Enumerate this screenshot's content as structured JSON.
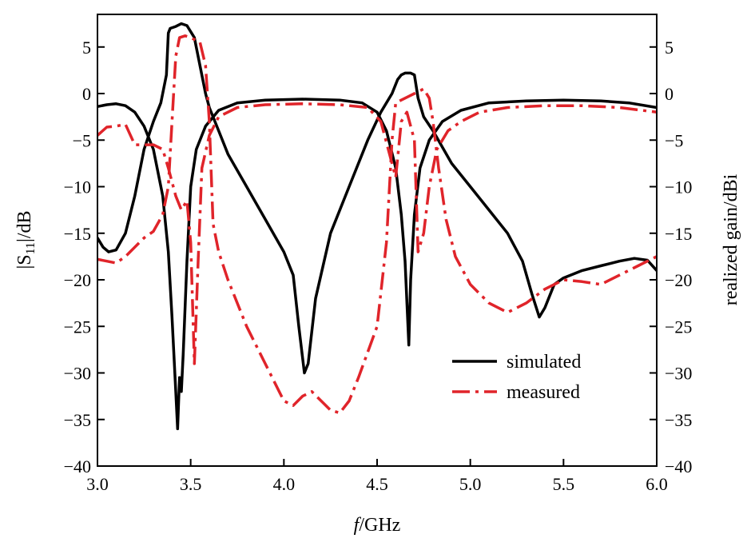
{
  "chart_data": {
    "type": "line",
    "xlabel_prefix": "f",
    "xlabel_suffix": "/GHz",
    "ylabel_left_prefix": "|S",
    "ylabel_left_sub": "11",
    "ylabel_left_suffix": "|/dB",
    "ylabel_right": "realized gain/dBi",
    "xlim": [
      3.0,
      6.0
    ],
    "ylim": [
      -40,
      8.5
    ],
    "x_ticks": [
      3.0,
      3.5,
      4.0,
      4.5,
      5.0,
      5.5,
      6.0
    ],
    "x_tick_labels": [
      "3.0",
      "3.5",
      "4.0",
      "4.5",
      "5.0",
      "5.5",
      "6.0"
    ],
    "y_ticks": [
      5,
      0,
      -5,
      -10,
      -15,
      -20,
      -25,
      -30,
      -35,
      -40
    ],
    "y_tick_labels": [
      "5",
      "0",
      "−5",
      "−10",
      "−15",
      "−20",
      "−25",
      "−30",
      "−35",
      "−40"
    ],
    "grid": false,
    "legend_position": "bottom-right",
    "legend": [
      {
        "label": "simulated",
        "color": "#000000",
        "style": "solid"
      },
      {
        "label": "measured",
        "color": "#e0242a",
        "style": "dashdot"
      }
    ],
    "series": [
      {
        "name": "simulated",
        "quantity": "S11",
        "color": "#000000",
        "style": "solid",
        "points": [
          [
            3.0,
            -15.5
          ],
          [
            3.03,
            -16.5
          ],
          [
            3.06,
            -17.0
          ],
          [
            3.1,
            -16.8
          ],
          [
            3.15,
            -15.0
          ],
          [
            3.2,
            -11.0
          ],
          [
            3.25,
            -6.0
          ],
          [
            3.3,
            -3.0
          ],
          [
            3.34,
            -1.0
          ],
          [
            3.37,
            2.0
          ],
          [
            3.38,
            6.5
          ],
          [
            3.39,
            7.0
          ],
          [
            3.42,
            7.2
          ],
          [
            3.45,
            7.5
          ],
          [
            3.48,
            7.3
          ],
          [
            3.52,
            6.0
          ],
          [
            3.55,
            3.0
          ],
          [
            3.58,
            0.0
          ],
          [
            3.6,
            -1.5
          ],
          [
            3.65,
            -4.0
          ],
          [
            3.7,
            -6.5
          ],
          [
            3.8,
            -10.0
          ],
          [
            3.9,
            -13.5
          ],
          [
            4.0,
            -17.0
          ],
          [
            4.05,
            -19.5
          ],
          [
            4.08,
            -25.0
          ],
          [
            4.11,
            -30.0
          ],
          [
            4.13,
            -29.0
          ],
          [
            4.17,
            -22.0
          ],
          [
            4.25,
            -15.0
          ],
          [
            4.35,
            -10.0
          ],
          [
            4.45,
            -5.0
          ],
          [
            4.52,
            -2.0
          ],
          [
            4.58,
            0.0
          ],
          [
            4.61,
            1.5
          ],
          [
            4.63,
            2.0
          ],
          [
            4.65,
            2.2
          ],
          [
            4.68,
            2.2
          ],
          [
            4.7,
            2.0
          ],
          [
            4.72,
            -0.5
          ],
          [
            4.75,
            -2.5
          ],
          [
            4.8,
            -4.0
          ],
          [
            4.9,
            -7.5
          ],
          [
            5.0,
            -10.0
          ],
          [
            5.1,
            -12.5
          ],
          [
            5.2,
            -15.0
          ],
          [
            5.28,
            -18.0
          ],
          [
            5.33,
            -21.5
          ],
          [
            5.37,
            -24.0
          ],
          [
            5.4,
            -23.0
          ],
          [
            5.45,
            -20.5
          ],
          [
            5.5,
            -19.8
          ],
          [
            5.6,
            -19.0
          ],
          [
            5.7,
            -18.5
          ],
          [
            5.8,
            -18.0
          ],
          [
            5.88,
            -17.7
          ],
          [
            5.95,
            -17.9
          ],
          [
            6.0,
            -19.0
          ]
        ]
      },
      {
        "name": "simulated",
        "quantity": "realized gain",
        "color": "#000000",
        "style": "solid",
        "points": [
          [
            3.0,
            -1.4
          ],
          [
            3.05,
            -1.2
          ],
          [
            3.1,
            -1.1
          ],
          [
            3.15,
            -1.3
          ],
          [
            3.2,
            -2.0
          ],
          [
            3.25,
            -3.5
          ],
          [
            3.3,
            -6.0
          ],
          [
            3.35,
            -11.0
          ],
          [
            3.38,
            -17.0
          ],
          [
            3.4,
            -24.0
          ],
          [
            3.42,
            -32.0
          ],
          [
            3.43,
            -36.0
          ],
          [
            3.44,
            -30.5
          ],
          [
            3.45,
            -32.0
          ],
          [
            3.46,
            -28.0
          ],
          [
            3.48,
            -18.0
          ],
          [
            3.5,
            -10.0
          ],
          [
            3.53,
            -6.0
          ],
          [
            3.58,
            -3.5
          ],
          [
            3.65,
            -1.8
          ],
          [
            3.75,
            -1.0
          ],
          [
            3.9,
            -0.7
          ],
          [
            4.1,
            -0.6
          ],
          [
            4.3,
            -0.7
          ],
          [
            4.42,
            -1.0
          ],
          [
            4.5,
            -2.0
          ],
          [
            4.55,
            -4.0
          ],
          [
            4.6,
            -8.0
          ],
          [
            4.63,
            -13.0
          ],
          [
            4.65,
            -18.0
          ],
          [
            4.67,
            -27.0
          ],
          [
            4.68,
            -20.0
          ],
          [
            4.7,
            -13.0
          ],
          [
            4.73,
            -8.0
          ],
          [
            4.78,
            -5.0
          ],
          [
            4.85,
            -3.0
          ],
          [
            4.95,
            -1.8
          ],
          [
            5.1,
            -1.0
          ],
          [
            5.3,
            -0.8
          ],
          [
            5.5,
            -0.7
          ],
          [
            5.7,
            -0.8
          ],
          [
            5.85,
            -1.0
          ],
          [
            6.0,
            -1.5
          ]
        ]
      },
      {
        "name": "measured",
        "quantity": "S11",
        "color": "#e0242a",
        "style": "dashdot",
        "points": [
          [
            3.0,
            -17.8
          ],
          [
            3.05,
            -18.0
          ],
          [
            3.1,
            -18.2
          ],
          [
            3.15,
            -17.5
          ],
          [
            3.2,
            -16.5
          ],
          [
            3.25,
            -15.5
          ],
          [
            3.3,
            -14.8
          ],
          [
            3.35,
            -13.0
          ],
          [
            3.38,
            -10.0
          ],
          [
            3.4,
            -3.0
          ],
          [
            3.42,
            4.0
          ],
          [
            3.44,
            6.0
          ],
          [
            3.47,
            6.2
          ],
          [
            3.5,
            6.0
          ],
          [
            3.55,
            5.5
          ],
          [
            3.58,
            3.0
          ],
          [
            3.6,
            -3.0
          ],
          [
            3.62,
            -14.0
          ],
          [
            3.65,
            -17.0
          ],
          [
            3.7,
            -20.0
          ],
          [
            3.8,
            -25.0
          ],
          [
            3.9,
            -29.0
          ],
          [
            4.0,
            -33.0
          ],
          [
            4.05,
            -33.5
          ],
          [
            4.1,
            -32.5
          ],
          [
            4.15,
            -32.0
          ],
          [
            4.2,
            -33.0
          ],
          [
            4.25,
            -34.0
          ],
          [
            4.3,
            -34.3
          ],
          [
            4.35,
            -33.0
          ],
          [
            4.4,
            -30.5
          ],
          [
            4.5,
            -25.0
          ],
          [
            4.55,
            -16.0
          ],
          [
            4.58,
            -5.0
          ],
          [
            4.6,
            -1.0
          ],
          [
            4.65,
            -0.5
          ],
          [
            4.7,
            0.0
          ],
          [
            4.75,
            0.5
          ],
          [
            4.78,
            -0.5
          ],
          [
            4.8,
            -3.0
          ],
          [
            4.83,
            -8.0
          ],
          [
            4.87,
            -13.5
          ],
          [
            4.92,
            -17.5
          ],
          [
            5.0,
            -20.5
          ],
          [
            5.1,
            -22.5
          ],
          [
            5.2,
            -23.5
          ],
          [
            5.3,
            -22.5
          ],
          [
            5.4,
            -21.0
          ],
          [
            5.5,
            -20.0
          ],
          [
            5.6,
            -20.2
          ],
          [
            5.7,
            -20.5
          ],
          [
            5.8,
            -19.5
          ],
          [
            5.9,
            -18.5
          ],
          [
            6.0,
            -17.5
          ]
        ]
      },
      {
        "name": "measured",
        "quantity": "realized gain",
        "color": "#e0242a",
        "style": "dashdot",
        "points": [
          [
            3.0,
            -4.5
          ],
          [
            3.05,
            -3.6
          ],
          [
            3.1,
            -3.5
          ],
          [
            3.15,
            -3.3
          ],
          [
            3.2,
            -5.5
          ],
          [
            3.25,
            -5.5
          ],
          [
            3.3,
            -5.5
          ],
          [
            3.35,
            -6.0
          ],
          [
            3.38,
            -8.0
          ],
          [
            3.42,
            -11.0
          ],
          [
            3.45,
            -12.5
          ],
          [
            3.48,
            -11.5
          ],
          [
            3.5,
            -16.0
          ],
          [
            3.52,
            -29.0
          ],
          [
            3.54,
            -18.0
          ],
          [
            3.56,
            -8.0
          ],
          [
            3.6,
            -4.5
          ],
          [
            3.65,
            -2.5
          ],
          [
            3.75,
            -1.5
          ],
          [
            3.9,
            -1.2
          ],
          [
            4.1,
            -1.1
          ],
          [
            4.3,
            -1.2
          ],
          [
            4.45,
            -1.5
          ],
          [
            4.52,
            -3.0
          ],
          [
            4.56,
            -6.0
          ],
          [
            4.6,
            -9.0
          ],
          [
            4.63,
            -3.0
          ],
          [
            4.66,
            -2.0
          ],
          [
            4.7,
            -5.0
          ],
          [
            4.72,
            -17.0
          ],
          [
            4.75,
            -15.0
          ],
          [
            4.78,
            -10.0
          ],
          [
            4.82,
            -6.0
          ],
          [
            4.88,
            -4.0
          ],
          [
            4.95,
            -3.0
          ],
          [
            5.05,
            -2.0
          ],
          [
            5.2,
            -1.5
          ],
          [
            5.4,
            -1.3
          ],
          [
            5.6,
            -1.3
          ],
          [
            5.8,
            -1.5
          ],
          [
            6.0,
            -2.0
          ]
        ]
      }
    ]
  }
}
